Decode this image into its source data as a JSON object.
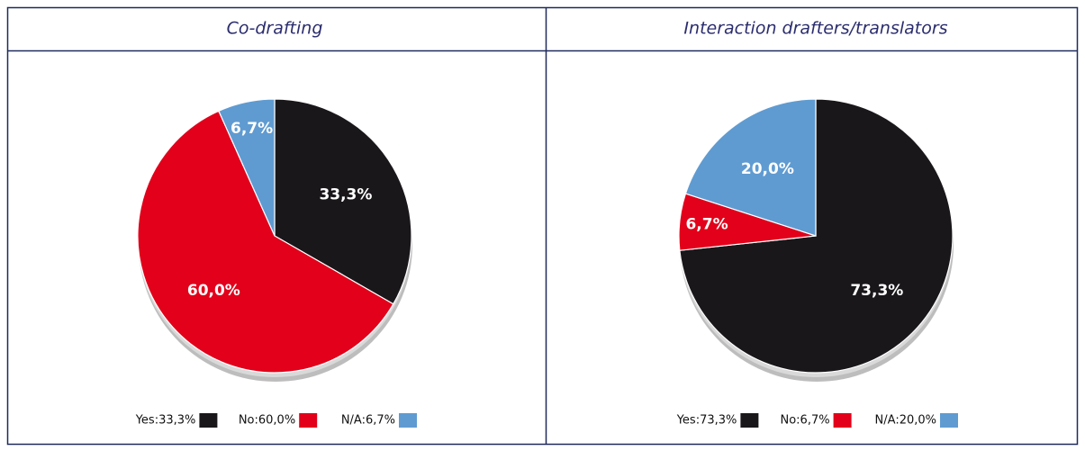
{
  "chart_data": [
    {
      "type": "pie",
      "title": "Co-drafting",
      "categories": [
        "Yes",
        "No",
        "N/A"
      ],
      "values": [
        33.3,
        60.0,
        6.7
      ],
      "value_labels": [
        "33,3%",
        "60,0%",
        "6,7%"
      ],
      "legend_labels": [
        "Yes:33,3%",
        "No:60,0%",
        "N/A:6,7%"
      ],
      "colors": [
        "#1a171b",
        "#e2001a",
        "#5f9bd1"
      ]
    },
    {
      "type": "pie",
      "title": "Interaction drafters/translators",
      "categories": [
        "Yes",
        "No",
        "N/A"
      ],
      "values": [
        73.3,
        6.7,
        20.0
      ],
      "value_labels": [
        "73,3%",
        "6,7%",
        "20,0%"
      ],
      "legend_labels": [
        "Yes:73,3%",
        "No:6,7%",
        "N/A:20,0%"
      ],
      "colors": [
        "#1a171b",
        "#e2001a",
        "#5f9bd1"
      ]
    }
  ]
}
